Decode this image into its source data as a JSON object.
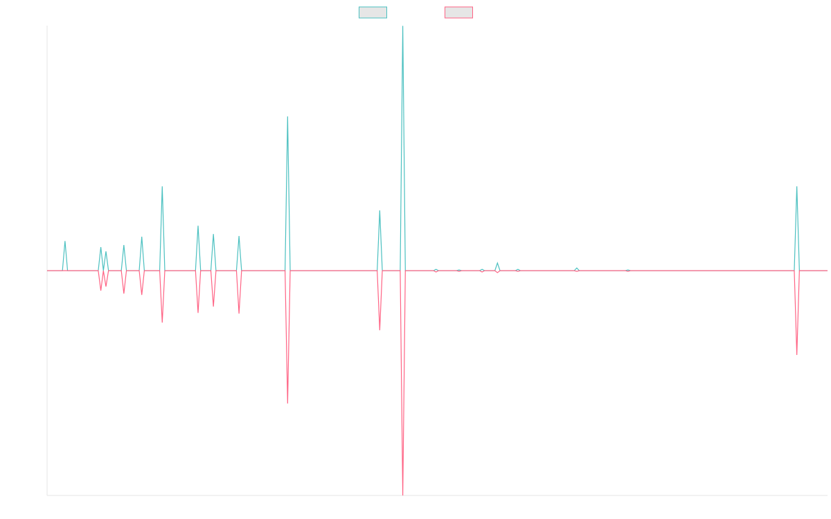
{
  "chart_data": {
    "type": "line",
    "x": [
      0,
      6,
      7,
      8,
      20,
      21,
      22,
      23,
      24,
      29,
      30,
      31,
      36,
      37,
      38,
      44,
      45,
      46,
      58,
      59,
      60,
      64,
      65,
      66,
      74,
      75,
      76,
      93,
      94,
      95,
      129,
      130,
      131,
      138,
      139,
      140,
      151,
      152,
      153,
      160,
      161,
      162,
      169,
      170,
      171,
      175,
      176,
      177,
      183,
      184,
      185,
      206,
      207,
      208,
      226,
      227,
      228,
      292,
      293,
      294,
      305
    ],
    "xlim": [
      0,
      305
    ],
    "ylim": [
      -100,
      109
    ],
    "legend": "top",
    "series": [
      {
        "color": "#4bc0c0",
        "values": [
          0,
          0,
          13.2,
          0,
          0,
          10.5,
          0,
          8.6,
          0,
          0,
          11.4,
          0,
          0,
          15.1,
          0,
          0,
          37.5,
          0,
          0,
          20,
          0,
          0,
          16.3,
          0,
          0,
          15.4,
          0,
          0,
          68.6,
          0,
          0,
          26.8,
          0,
          0,
          108.9,
          0,
          0,
          0.6,
          0,
          0,
          0.3,
          0,
          0,
          0.6,
          0,
          0,
          3.4,
          0,
          0,
          0.6,
          0,
          0,
          1.2,
          0,
          0,
          0.3,
          0,
          0,
          37.5,
          0,
          0
        ]
      },
      {
        "color": "#ff6384",
        "values": [
          0,
          0,
          0,
          0,
          0,
          -8.9,
          0,
          -7.1,
          0,
          0,
          -10.2,
          0,
          0,
          -10.8,
          0,
          0,
          -23.1,
          0,
          0,
          -18.8,
          0,
          0,
          -16,
          0,
          0,
          -19.1,
          0,
          0,
          -59.1,
          0,
          0,
          -26.5,
          0,
          0,
          -100,
          0,
          0,
          -0.6,
          0,
          0,
          -0.3,
          0,
          0,
          -0.6,
          0,
          0,
          -0.9,
          0,
          0,
          -0.3,
          0,
          0,
          -0.3,
          0,
          0,
          -0.3,
          0,
          0,
          -37.5,
          0,
          0
        ]
      }
    ]
  }
}
